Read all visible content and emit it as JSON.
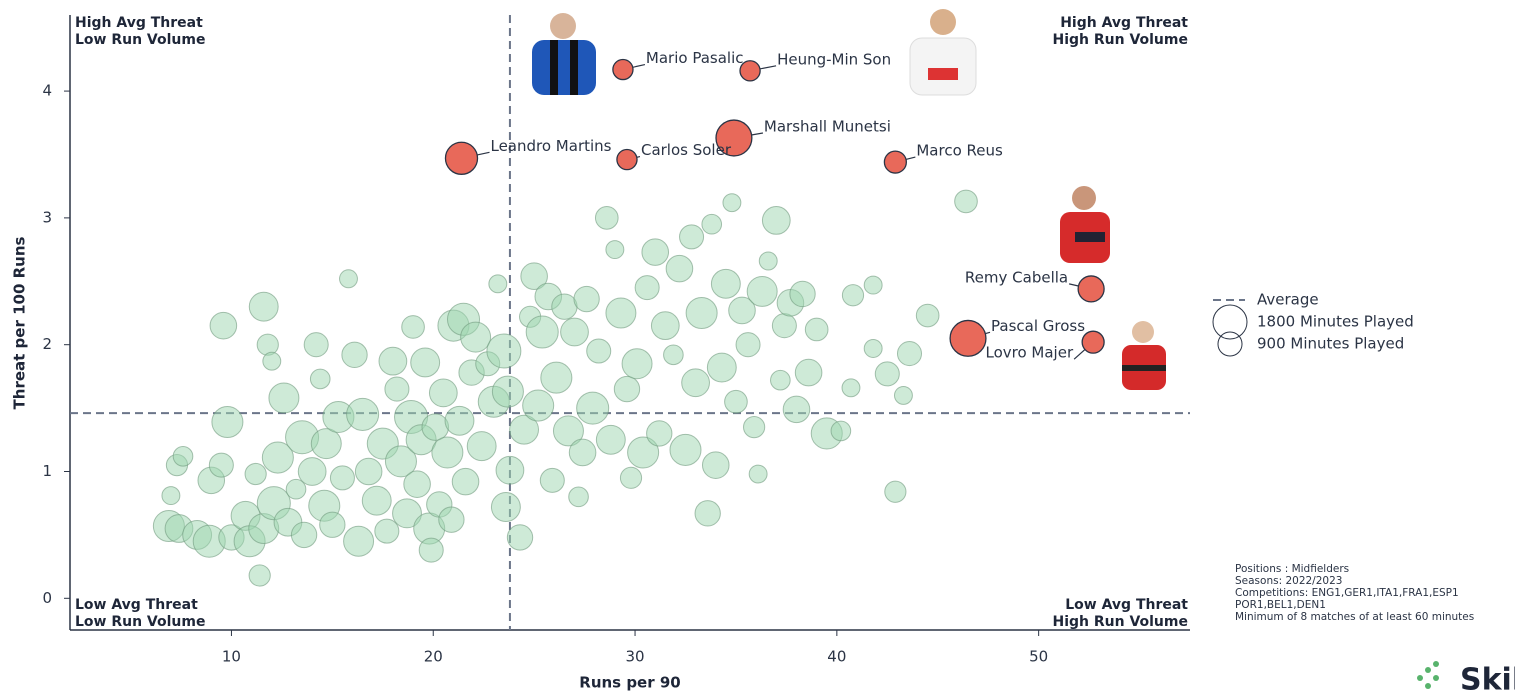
{
  "chart_data": {
    "type": "scatter",
    "x_label": "Runs per 90",
    "y_label": "Threat per 100 Runs",
    "xlim": [
      2,
      57.5
    ],
    "ylim": [
      -0.25,
      4.6
    ],
    "xticks": [
      10,
      20,
      30,
      40,
      50
    ],
    "yticks": [
      0,
      1,
      2,
      3,
      4
    ],
    "average": {
      "label": "Average",
      "x": 23.8,
      "y": 1.46
    },
    "size_legend": [
      {
        "value": 1800,
        "label": "1800 Minutes Played"
      },
      {
        "value": 900,
        "label": "900 Minutes Played"
      }
    ],
    "quadrant_labels": {
      "top_left": [
        "High Avg Threat",
        "Low Run Volume"
      ],
      "top_right": [
        "High Avg Threat",
        "High Run Volume"
      ],
      "bottom_left": [
        "Low Avg Threat",
        "Low Run Volume"
      ],
      "bottom_right": [
        "Low Avg Threat",
        "High Run Volume"
      ]
    },
    "points": {
      "color": "#9ed6b0",
      "x": [
        6.9,
        7.4,
        7.0,
        7.3,
        7.6,
        8.3,
        8.9,
        9.0,
        9.5,
        9.6,
        9.8,
        10.0,
        10.7,
        10.9,
        11.2,
        11.4,
        11.6,
        11.6,
        11.8,
        12.0,
        12.1,
        12.3,
        12.6,
        12.8,
        13.2,
        13.5,
        13.6,
        14.0,
        14.2,
        14.4,
        14.6,
        14.7,
        15.0,
        15.3,
        15.5,
        15.8,
        16.1,
        16.3,
        16.5,
        16.8,
        17.2,
        17.5,
        17.7,
        18.0,
        18.2,
        18.4,
        18.7,
        18.9,
        19.0,
        19.2,
        19.4,
        19.6,
        19.8,
        19.9,
        20.1,
        20.3,
        20.5,
        20.7,
        20.9,
        21.0,
        21.3,
        21.5,
        21.6,
        21.9,
        22.1,
        22.4,
        22.7,
        23.0,
        23.2,
        23.5,
        23.6,
        23.7,
        23.8,
        24.3,
        24.5,
        24.8,
        25.0,
        25.2,
        25.4,
        25.7,
        25.9,
        26.1,
        26.5,
        26.7,
        27.0,
        27.2,
        27.4,
        27.6,
        27.9,
        28.2,
        28.6,
        28.8,
        29.0,
        29.3,
        29.6,
        29.8,
        30.1,
        30.4,
        30.6,
        31.0,
        31.2,
        31.5,
        31.9,
        32.2,
        32.5,
        32.8,
        33.0,
        33.3,
        33.6,
        33.8,
        34.0,
        34.3,
        34.5,
        34.8,
        35.0,
        35.3,
        35.6,
        35.9,
        36.1,
        36.3,
        36.6,
        37.0,
        37.2,
        37.4,
        37.7,
        38.0,
        38.3,
        38.6,
        39.0,
        39.5,
        40.2,
        40.7,
        40.8,
        41.8,
        41.8,
        42.5,
        42.9,
        43.3,
        43.6,
        44.5,
        46.4
      ],
      "values": [
        0.57,
        0.55,
        0.81,
        1.05,
        1.12,
        0.5,
        0.45,
        0.93,
        1.05,
        2.15,
        1.39,
        0.48,
        0.65,
        0.45,
        0.98,
        0.18,
        0.55,
        2.3,
        2.0,
        1.87,
        0.75,
        1.11,
        1.58,
        0.6,
        0.86,
        1.27,
        0.5,
        1.0,
        2.0,
        1.73,
        0.73,
        1.22,
        0.58,
        1.43,
        0.95,
        2.52,
        1.92,
        0.45,
        1.45,
        1.0,
        0.77,
        1.22,
        0.53,
        1.87,
        1.65,
        1.08,
        0.67,
        1.43,
        2.14,
        0.9,
        1.25,
        1.86,
        0.55,
        0.38,
        1.35,
        0.74,
        1.62,
        1.15,
        0.62,
        2.15,
        1.4,
        2.2,
        0.92,
        1.78,
        2.06,
        1.2,
        1.85,
        1.55,
        2.48,
        1.95,
        0.72,
        1.63,
        1.01,
        0.48,
        1.33,
        2.22,
        2.54,
        1.52,
        2.1,
        2.38,
        0.93,
        1.74,
        2.3,
        1.32,
        2.1,
        0.8,
        1.15,
        2.36,
        1.5,
        1.95,
        3.0,
        1.25,
        2.75,
        2.25,
        1.65,
        0.95,
        1.85,
        1.15,
        2.45,
        2.73,
        1.3,
        2.15,
        1.92,
        2.6,
        1.17,
        2.85,
        1.7,
        2.25,
        0.67,
        2.95,
        1.05,
        1.82,
        2.48,
        3.12,
        1.55,
        2.27,
        2.0,
        1.35,
        0.98,
        2.42,
        2.66,
        2.98,
        1.72,
        2.15,
        2.33,
        1.49,
        2.4,
        1.78,
        2.12,
        1.3,
        1.32,
        1.66,
        2.39,
        2.47,
        1.97,
        1.77,
        0.84,
        1.6,
        1.93,
        2.23,
        3.13
      ],
      "sizes": [
        1500,
        1200,
        500,
        700,
        600,
        1300,
        1600,
        1100,
        900,
        1100,
        1500,
        1000,
        1300,
        1500,
        700,
        700,
        1400,
        1300,
        700,
        500,
        1700,
        1500,
        1400,
        1200,
        600,
        1700,
        1000,
        1200,
        900,
        600,
        1500,
        1400,
        1000,
        1500,
        900,
        500,
        1000,
        1400,
        1600,
        1100,
        1300,
        1500,
        900,
        1200,
        900,
        1500,
        1300,
        1700,
        800,
        1100,
        1400,
        1300,
        1500,
        900,
        1100,
        1000,
        1200,
        1500,
        1000,
        1500,
        1300,
        1600,
        1100,
        1000,
        1400,
        1300,
        900,
        1500,
        500,
        1800,
        1300,
        1500,
        1200,
        1000,
        1300,
        700,
        1100,
        1500,
        1600,
        1100,
        900,
        1500,
        1000,
        1400,
        1200,
        600,
        1100,
        1000,
        1600,
        900,
        800,
        1300,
        500,
        1400,
        1000,
        700,
        1400,
        1500,
        900,
        1100,
        1000,
        1200,
        600,
        1100,
        1500,
        900,
        1200,
        1500,
        1000,
        600,
        1100,
        1300,
        1300,
        500,
        800,
        1100,
        900,
        700,
        500,
        1400,
        500,
        1200,
        600,
        900,
        1100,
        1100,
        1000,
        1100,
        800,
        1500,
        600,
        500,
        700,
        500,
        500,
        900,
        700,
        500,
        900,
        800,
        800
      ]
    },
    "highlighted": {
      "color": "#e8695a",
      "labels": [
        "Mario Pasalic",
        "Heung-Min Son",
        "Marshall Munetsi",
        "Leandro Martins",
        "Carlos Soler",
        "Marco Reus",
        "Remy Cabella",
        "Pascal Gross",
        "Lovro Majer"
      ],
      "x": [
        29.4,
        35.7,
        34.9,
        21.4,
        29.6,
        42.9,
        52.6,
        46.5,
        52.7
      ],
      "values": [
        4.17,
        4.16,
        3.63,
        3.47,
        3.46,
        3.44,
        2.44,
        2.05,
        2.02
      ],
      "sizes": [
        630,
        630,
        2000,
        1600,
        630,
        750,
        1050,
        2000,
        750
      ]
    },
    "notes": [
      "Positions : Midfielders",
      "Seasons: 2022/2023",
      "Competitions: ENG1,GER1,ITA1,FRA1,ESP1",
      "POR1,BEL1,DEN1",
      "Minimum of 8 matches of at least 60 minutes"
    ],
    "brand": "Skil"
  }
}
